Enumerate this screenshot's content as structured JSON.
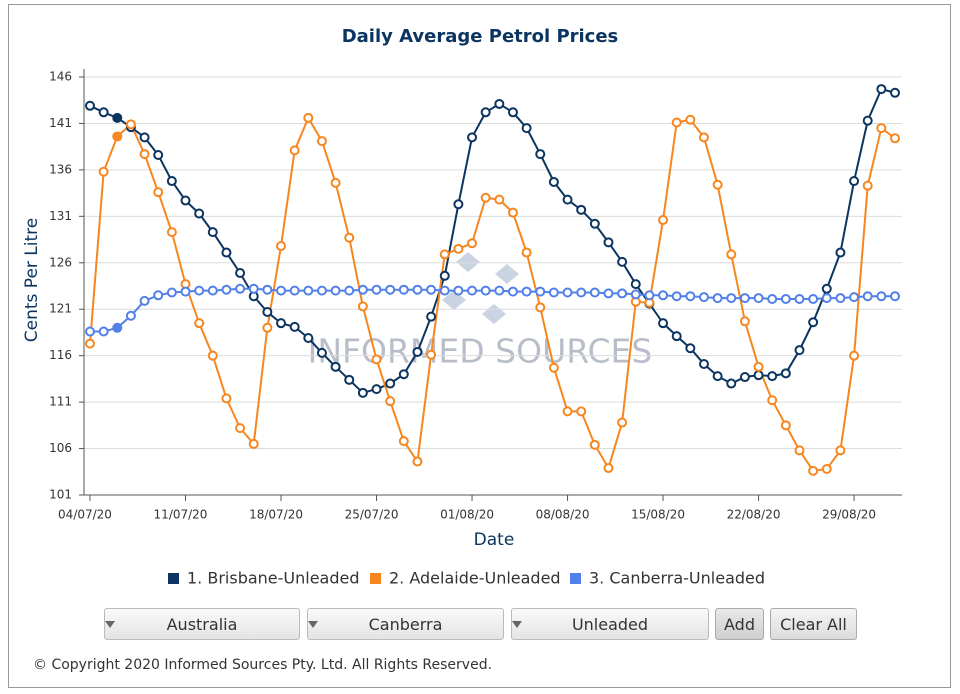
{
  "chart_data": {
    "type": "line",
    "title": "Daily Average Petrol Prices",
    "x_label": "Date",
    "y_label": "Cents Per Litre",
    "watermark": "INFORMED SOURCES",
    "categories": [
      "04/07/20",
      null,
      null,
      null,
      null,
      null,
      null,
      "11/07/20",
      null,
      null,
      null,
      null,
      null,
      null,
      "18/07/20",
      null,
      null,
      null,
      null,
      null,
      null,
      "25/07/20",
      null,
      null,
      null,
      null,
      null,
      null,
      "01/08/20",
      null,
      null,
      null,
      null,
      null,
      null,
      "08/08/20",
      null,
      null,
      null,
      null,
      null,
      null,
      "15/08/20",
      null,
      null,
      null,
      null,
      null,
      null,
      "22/08/20",
      null,
      null,
      null,
      null,
      null,
      null,
      "29/08/20",
      null,
      null,
      null
    ],
    "ylim": [
      101,
      146
    ],
    "yticks": [
      101,
      106,
      111,
      116,
      121,
      126,
      131,
      136,
      141,
      146
    ],
    "grid": true,
    "series": [
      {
        "name": "1. Brisbane-Unleaded",
        "color": "#0b3560",
        "values": [
          142.9,
          142.2,
          141.6,
          140.6,
          139.5,
          137.6,
          134.8,
          132.7,
          131.3,
          129.3,
          127.1,
          124.9,
          122.4,
          120.7,
          119.5,
          119.1,
          117.9,
          116.3,
          114.8,
          113.4,
          112.0,
          112.4,
          113.0,
          114.0,
          116.4,
          120.2,
          124.6,
          132.3,
          139.5,
          142.2,
          143.1,
          142.2,
          140.5,
          137.7,
          134.7,
          132.8,
          131.7,
          130.2,
          128.2,
          126.1,
          123.7,
          121.6,
          119.5,
          118.1,
          116.8,
          115.1,
          113.8,
          113.0,
          113.7,
          113.9,
          113.8,
          114.1,
          116.6,
          119.6,
          123.2,
          127.1,
          134.8,
          141.3,
          144.7,
          144.3
        ]
      },
      {
        "name": "2. Adelaide-Unleaded",
        "color": "#f7861e",
        "values": [
          117.3,
          135.8,
          139.6,
          140.9,
          137.7,
          133.6,
          129.3,
          123.7,
          119.5,
          116.0,
          111.4,
          108.2,
          106.5,
          119.0,
          127.8,
          138.1,
          141.6,
          139.1,
          134.6,
          128.7,
          121.3,
          115.6,
          111.1,
          106.8,
          104.6,
          116.1,
          126.9,
          127.5,
          128.1,
          133.0,
          132.8,
          131.4,
          127.1,
          121.2,
          114.7,
          110.0,
          110.0,
          106.4,
          103.9,
          108.8,
          121.8,
          121.7,
          130.6,
          141.1,
          141.4,
          139.5,
          134.4,
          126.9,
          119.7,
          114.8,
          111.2,
          108.5,
          105.8,
          103.6,
          103.8,
          105.8,
          116.0,
          134.3,
          140.5,
          139.4
        ]
      },
      {
        "name": "3. Canberra-Unleaded",
        "color": "#5080e8",
        "values": [
          118.6,
          118.6,
          119.0,
          120.3,
          121.9,
          122.5,
          122.8,
          122.9,
          123.0,
          123.0,
          123.1,
          123.2,
          123.2,
          123.1,
          123.0,
          123.0,
          123.0,
          123.0,
          123.0,
          123.0,
          123.1,
          123.1,
          123.1,
          123.1,
          123.1,
          123.1,
          123.0,
          123.0,
          123.0,
          123.0,
          123.0,
          122.9,
          122.9,
          122.9,
          122.8,
          122.8,
          122.8,
          122.8,
          122.7,
          122.7,
          122.6,
          122.5,
          122.5,
          122.4,
          122.4,
          122.3,
          122.2,
          122.2,
          122.2,
          122.2,
          122.1,
          122.1,
          122.1,
          122.1,
          122.2,
          122.2,
          122.3,
          122.4,
          122.4,
          122.4
        ]
      }
    ]
  },
  "controls": {
    "dropdowns": [
      "Australia",
      "Canberra",
      "Unleaded"
    ],
    "buttons": [
      "Add",
      "Clear All"
    ]
  },
  "footer": {
    "copyright": "© Copyright 2020 Informed Sources Pty. Ltd. All Rights Reserved."
  }
}
